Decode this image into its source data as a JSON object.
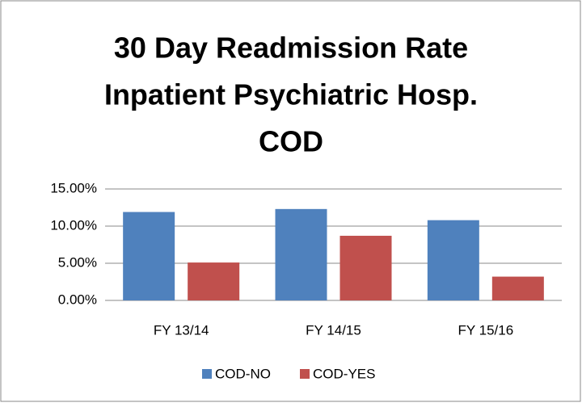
{
  "chart_data": {
    "type": "bar",
    "title": [
      "30 Day Readmission Rate",
      "Inpatient Psychiatric Hosp.",
      "COD"
    ],
    "categories": [
      "FY 13/14",
      "FY 14/15",
      "FY 15/16"
    ],
    "series": [
      {
        "name": "COD-NO",
        "color": "#4f81bd",
        "values": [
          11.9,
          12.3,
          10.8
        ]
      },
      {
        "name": "COD-YES",
        "color": "#c0504d",
        "values": [
          5.1,
          8.7,
          3.2
        ]
      }
    ],
    "ylim": [
      0,
      15
    ],
    "yticks": [
      {
        "value": 0,
        "label": "0.00%"
      },
      {
        "value": 5,
        "label": "5.00%"
      },
      {
        "value": 10,
        "label": "10.00%"
      },
      {
        "value": 15,
        "label": "15.00%"
      }
    ],
    "grid": true,
    "legend": "bottom"
  }
}
